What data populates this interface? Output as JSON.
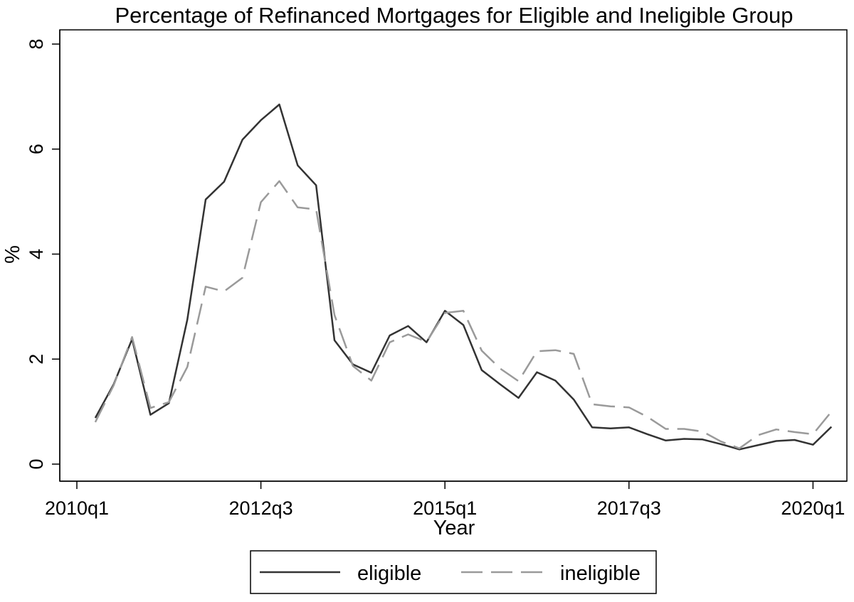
{
  "chart_data": {
    "type": "line",
    "title": "Percentage of Refinanced Mortgages for Eligible and Ineligible Group",
    "xlabel": "Year",
    "ylabel": "%",
    "ylim": [
      0,
      8
    ],
    "yticks": [
      0,
      2,
      4,
      6,
      8
    ],
    "xlim": [
      "2010q1",
      "2020q2"
    ],
    "xticks": [
      "2010q1",
      "2012q3",
      "2015q1",
      "2017q3",
      "2020q1"
    ],
    "grid": false,
    "legend_position": "bottom",
    "x": [
      "2010q2",
      "2010q3",
      "2010q4",
      "2011q1",
      "2011q2",
      "2011q3",
      "2011q4",
      "2012q1",
      "2012q2",
      "2012q3",
      "2012q4",
      "2013q1",
      "2013q2",
      "2013q3",
      "2013q4",
      "2014q1",
      "2014q2",
      "2014q3",
      "2014q4",
      "2015q1",
      "2015q2",
      "2015q3",
      "2015q4",
      "2016q1",
      "2016q2",
      "2016q3",
      "2016q4",
      "2017q1",
      "2017q2",
      "2017q3",
      "2017q4",
      "2018q1",
      "2018q2",
      "2018q3",
      "2018q4",
      "2019q1",
      "2019q2",
      "2019q3",
      "2019q4",
      "2020q1",
      "2020q2"
    ],
    "series": [
      {
        "name": "eligible",
        "color": "#333333",
        "dash": "solid",
        "values": [
          0.88,
          1.52,
          2.38,
          0.94,
          1.16,
          2.75,
          5.04,
          5.38,
          6.18,
          6.55,
          6.85,
          5.69,
          5.31,
          2.36,
          1.9,
          1.74,
          2.45,
          2.63,
          2.32,
          2.92,
          2.65,
          1.79,
          1.52,
          1.26,
          1.75,
          1.59,
          1.23,
          0.7,
          0.68,
          0.7,
          0.57,
          0.45,
          0.48,
          0.47,
          0.38,
          0.28,
          0.36,
          0.44,
          0.46,
          0.37,
          0.71
        ]
      },
      {
        "name": "ineligible",
        "color": "#9a9a9a",
        "dash": "dashed",
        "values": [
          0.8,
          1.5,
          2.42,
          1.07,
          1.18,
          1.85,
          3.38,
          3.29,
          3.55,
          4.99,
          5.39,
          4.89,
          4.85,
          2.84,
          1.87,
          1.59,
          2.32,
          2.47,
          2.33,
          2.88,
          2.92,
          2.16,
          1.82,
          1.58,
          2.15,
          2.17,
          2.1,
          1.14,
          1.1,
          1.08,
          0.9,
          0.67,
          0.67,
          0.62,
          0.43,
          0.3,
          0.55,
          0.66,
          0.61,
          0.57,
          1.0
        ]
      }
    ]
  }
}
